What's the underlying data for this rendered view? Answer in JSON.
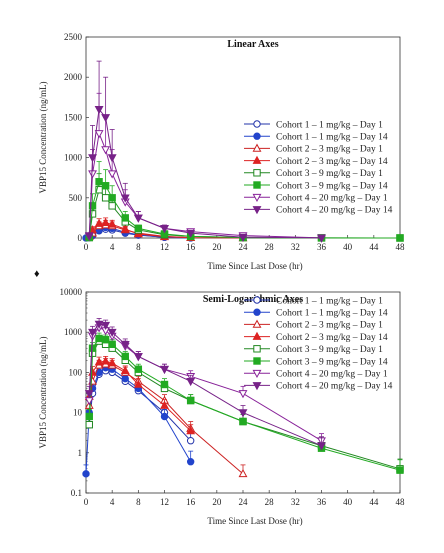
{
  "section_marker": "♦",
  "chart_data": [
    {
      "type": "line",
      "title": "Linear Axes",
      "xlabel": "Time Since Last Dose (hr)",
      "ylabel": "VBP15 Concentration (ng/mL)",
      "xlim": [
        0,
        48
      ],
      "ylim": [
        0,
        2500
      ],
      "xticks": [
        "0",
        "4",
        "8",
        "12",
        "16",
        "20",
        "24",
        "28",
        "32",
        "36",
        "40",
        "44",
        "48"
      ],
      "yticks": [
        "0",
        "500",
        "1000",
        "1500",
        "2000",
        "2500"
      ],
      "yscale": "linear",
      "grid": false,
      "legend": "center-right",
      "series": [
        {
          "name": "Cohort 1 – 1 mg/kg – Day 1",
          "color": "#2233aa",
          "marker": "circle",
          "filled": false,
          "x": [
            0.5,
            1,
            2,
            3,
            4,
            6,
            8,
            12,
            16
          ],
          "y": [
            5,
            30,
            90,
            110,
            100,
            60,
            35,
            10,
            2
          ],
          "err": [
            3,
            15,
            30,
            35,
            30,
            20,
            12,
            5,
            1
          ]
        },
        {
          "name": "Cohort 1 – 1 mg/kg – Day 14",
          "color": "#2244cc",
          "marker": "circle",
          "filled": true,
          "x": [
            0,
            0.5,
            1,
            2,
            3,
            4,
            6,
            8,
            12,
            16
          ],
          "y": [
            0.3,
            10,
            40,
            100,
            130,
            120,
            70,
            40,
            8,
            0.6
          ],
          "err": [
            0.2,
            5,
            20,
            35,
            40,
            35,
            25,
            15,
            4,
            0.5
          ]
        },
        {
          "name": "Cohort 2 – 3 mg/kg – Day 1",
          "color": "#cc2222",
          "marker": "triangle",
          "filled": false,
          "x": [
            0.5,
            1,
            2,
            3,
            4,
            6,
            8,
            12,
            16,
            24
          ],
          "y": [
            15,
            60,
            150,
            160,
            150,
            100,
            60,
            20,
            4,
            0.3
          ],
          "err": [
            8,
            30,
            50,
            60,
            50,
            35,
            20,
            8,
            2,
            0.2
          ]
        },
        {
          "name": "Cohort 2 – 3 mg/kg – Day 14",
          "color": "#dd2222",
          "marker": "triangle",
          "filled": true,
          "x": [
            0.5,
            1,
            2,
            3,
            4,
            6,
            8,
            12,
            16
          ],
          "y": [
            25,
            100,
            180,
            190,
            170,
            110,
            50,
            15,
            3.5
          ],
          "err": [
            10,
            40,
            60,
            60,
            50,
            35,
            20,
            6,
            1.5
          ]
        },
        {
          "name": "Cohort 3 – 9 mg/kg – Day 1",
          "color": "#228822",
          "marker": "square",
          "filled": false,
          "x": [
            0.5,
            1,
            2,
            3,
            4,
            6,
            8,
            12,
            16,
            24,
            36,
            48
          ],
          "y": [
            5,
            300,
            600,
            500,
            400,
            200,
            100,
            40,
            20,
            6,
            1.5,
            0.4
          ],
          "err": [
            3,
            120,
            200,
            150,
            120,
            60,
            35,
            15,
            8,
            3,
            1,
            0.3
          ]
        },
        {
          "name": "Cohort 3 – 9 mg/kg – Day 14",
          "color": "#22aa22",
          "marker": "square",
          "filled": true,
          "x": [
            0.5,
            1,
            2,
            3,
            4,
            6,
            8,
            12,
            16,
            24,
            36,
            48
          ],
          "y": [
            8,
            400,
            700,
            650,
            500,
            250,
            120,
            50,
            20,
            6,
            1.3,
            0.37
          ],
          "err": [
            4,
            150,
            250,
            200,
            150,
            80,
            40,
            20,
            8,
            3,
            1,
            0.3
          ]
        },
        {
          "name": "Cohort 4 – 20 mg/kg – Day 1",
          "color": "#882299",
          "marker": "triangle-down",
          "filled": false,
          "x": [
            0.5,
            1,
            2,
            3,
            4,
            6,
            8,
            12,
            16,
            24,
            36
          ],
          "y": [
            20,
            800,
            1300,
            1100,
            800,
            450,
            250,
            120,
            80,
            30,
            2
          ],
          "err": [
            10,
            300,
            500,
            400,
            300,
            150,
            80,
            40,
            30,
            15,
            1
          ]
        },
        {
          "name": "Cohort 4 – 20 mg/kg – Day 14",
          "color": "#772288",
          "marker": "triangle-down",
          "filled": true,
          "x": [
            0.5,
            1,
            2,
            3,
            4,
            6,
            8,
            12,
            16,
            24,
            36
          ],
          "y": [
            30,
            1000,
            1600,
            1500,
            1000,
            500,
            250,
            120,
            60,
            10,
            1.5
          ],
          "err": [
            15,
            400,
            600,
            500,
            350,
            180,
            80,
            40,
            25,
            5,
            1
          ]
        }
      ]
    },
    {
      "type": "line",
      "title": "Semi-Logarithmic Axes",
      "xlabel": "Time Since Last Dose (hr)",
      "ylabel": "VBP15 Concentration (ng/mL)",
      "xlim": [
        0,
        48
      ],
      "ylim": [
        0.1,
        10000
      ],
      "xticks": [
        "0",
        "4",
        "8",
        "12",
        "16",
        "20",
        "24",
        "28",
        "32",
        "36",
        "40",
        "44",
        "48"
      ],
      "yticks": [
        "0.1",
        "1",
        "10",
        "100",
        "1000",
        "10000"
      ],
      "yscale": "log",
      "grid": false,
      "legend": "top-right"
    }
  ]
}
